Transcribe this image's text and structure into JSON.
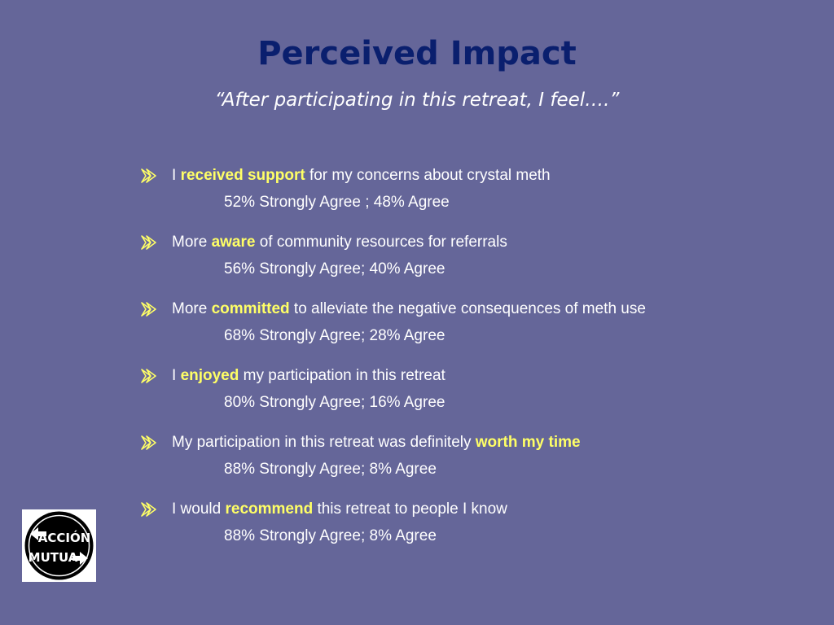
{
  "slide": {
    "title": "Perceived Impact",
    "subtitle": "“After participating in this retreat, I feel….”"
  },
  "colors": {
    "background": "#656699",
    "title": "#0a1f6e",
    "highlight": "#ffff66",
    "text": "#ffffff"
  },
  "bullets": [
    {
      "icon": "arrow-bullet-icon",
      "pre": "I ",
      "highlight": "received support",
      "post": " for my concerns about crystal meth",
      "result": "52% Strongly Agree ;  48% Agree"
    },
    {
      "icon": "arrow-bullet-icon",
      "pre": "More ",
      "highlight": "aware",
      "post": " of community resources for referrals",
      "result": "56% Strongly Agree;  40% Agree"
    },
    {
      "icon": "arrow-bullet-icon",
      "pre": "More ",
      "highlight": "committed",
      "post": " to alleviate the negative consequences of meth use",
      "result": "68% Strongly Agree;  28% Agree"
    },
    {
      "icon": "arrow-bullet-icon",
      "pre": "I ",
      "highlight": "enjoyed",
      "post": " my participation in this retreat",
      "result": "80% Strongly Agree;  16% Agree"
    },
    {
      "icon": "arrow-bullet-icon",
      "pre": "My participation in this retreat was definitely ",
      "highlight": "worth my time",
      "post": "",
      "result": "88% Strongly Agree;  8% Agree"
    },
    {
      "icon": "arrow-bullet-icon",
      "pre": "I would ",
      "highlight": "recommend",
      "post": " this retreat to people I know",
      "result": "88% Strongly Agree;  8% Agree"
    }
  ],
  "logo": {
    "line1": "ACCIÓN",
    "line2": "MUTUA"
  }
}
